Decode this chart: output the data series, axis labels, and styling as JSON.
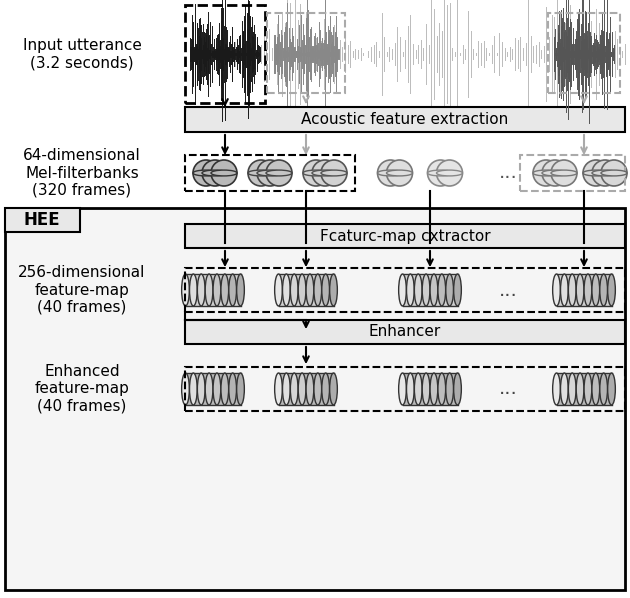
{
  "bg_color": "#ffffff",
  "box_fill_light": "#e8e8e8",
  "label_input_utterance": "Input utterance\n(3.2 seconds)",
  "label_mel": "64-dimensional\nMel-filterbanks\n(320 frames)",
  "label_256": "256-dimensional\nfeature-map\n(40 frames)",
  "label_enhanced": "Enhanced\nfeature-map\n(40 frames)",
  "label_acoustic": "Acoustic feature extraction",
  "label_featuremap": "Fcaturc-map cxtractor",
  "label_enhancer": "Enhancer",
  "label_hee": "HEE"
}
